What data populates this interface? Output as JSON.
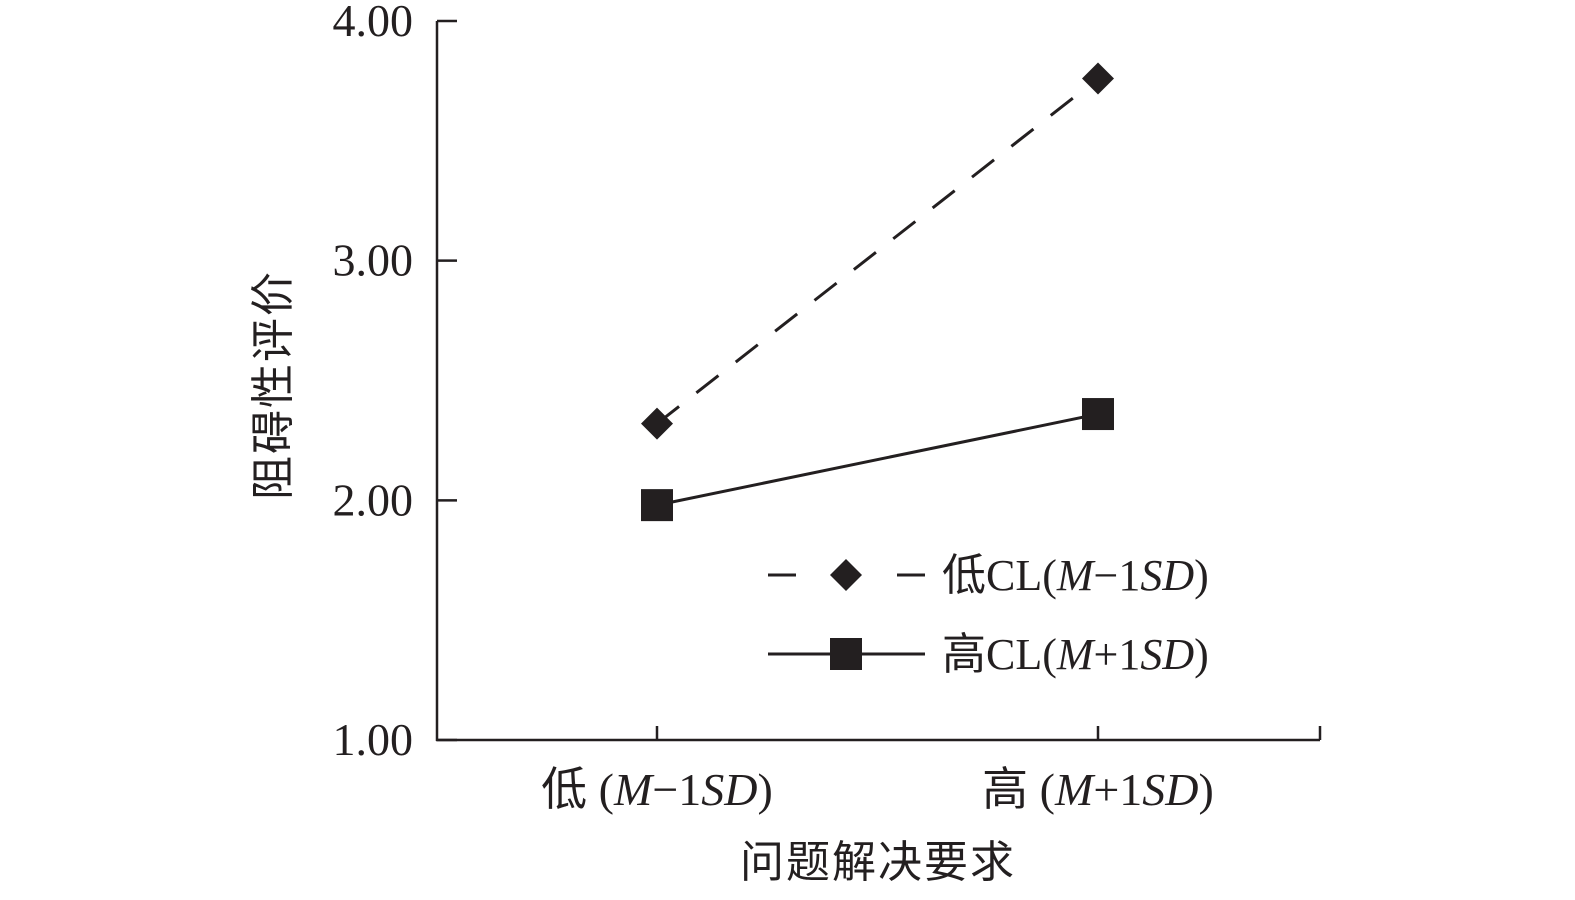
{
  "chart_data": {
    "type": "line",
    "ylabel": "阻碍性评价",
    "xlabel": "问题解决要求",
    "categories": [
      "低 (M−1SD)",
      "高 (M+1SD)"
    ],
    "category_parts": [
      {
        "prefix": "低 (",
        "m": "M",
        "mid": "−1",
        "sd": "SD",
        "suffix": ")"
      },
      {
        "prefix": "高 (",
        "m": "M",
        "mid": "+1",
        "sd": "SD",
        "suffix": ")"
      }
    ],
    "ylim": [
      1.0,
      4.0
    ],
    "yticks": [
      "1.00",
      "2.00",
      "3.00",
      "4.00"
    ],
    "series": [
      {
        "name": "低CL(M−1SD)",
        "legend_parts": {
          "prefix": "低CL(",
          "m": "M",
          "mid": "−1",
          "sd": "SD",
          "suffix": ")"
        },
        "values": [
          2.32,
          3.76
        ],
        "marker": "diamond",
        "line_style": "dashed",
        "color": "#231f20"
      },
      {
        "name": "高CL(M+1SD)",
        "legend_parts": {
          "prefix": "高CL(",
          "m": "M",
          "mid": "+1",
          "sd": "SD",
          "suffix": ")"
        },
        "values": [
          1.98,
          2.36
        ],
        "marker": "square",
        "line_style": "solid",
        "color": "#231f20"
      }
    ],
    "legend_position": "bottom-right",
    "grid": false
  }
}
